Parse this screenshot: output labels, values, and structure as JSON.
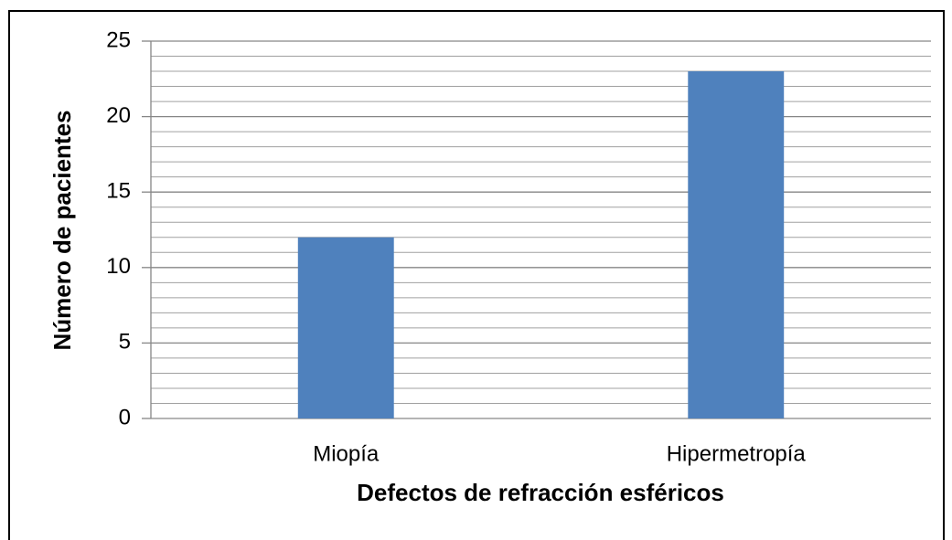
{
  "chart_data": {
    "type": "bar",
    "categories": [
      "Miopía",
      "Hipermetropía"
    ],
    "values": [
      12,
      23
    ],
    "color": "#4f81bd",
    "xlabel": "Defectos de refracción esféricos",
    "ylabel": "Número de pacientes",
    "ylim": [
      0,
      25
    ],
    "yticks": [
      0,
      5,
      10,
      15,
      20,
      25
    ],
    "minor_yticks": [
      1,
      2,
      3,
      4,
      6,
      7,
      8,
      9,
      11,
      12,
      13,
      14,
      16,
      17,
      18,
      19,
      21,
      22,
      23,
      24
    ],
    "grid": true
  }
}
